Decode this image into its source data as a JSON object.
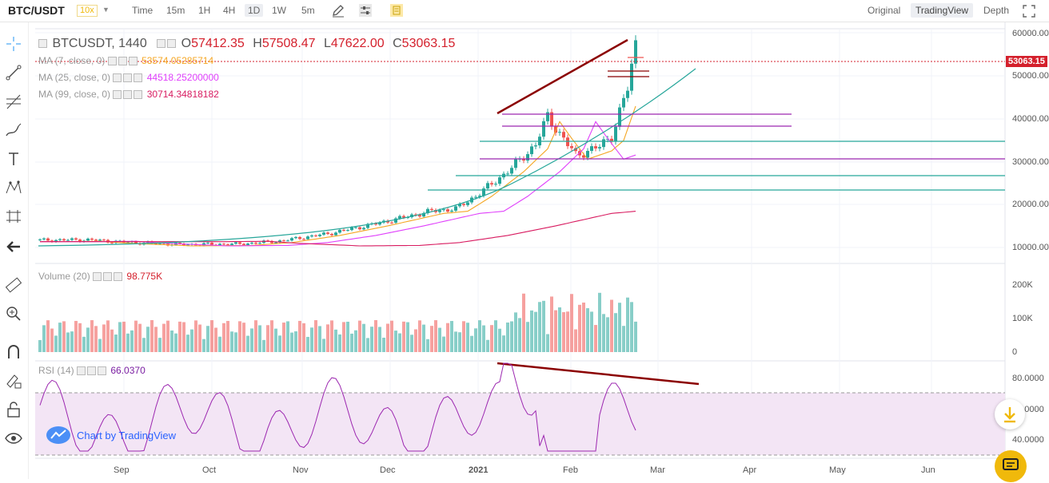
{
  "toolbar": {
    "symbol": "BTC/USDT",
    "leverage": "10x",
    "timeframes": [
      "Time",
      "15m",
      "1H",
      "4H",
      "1D",
      "1W",
      "5m"
    ],
    "selected_timeframe": "1D",
    "views": [
      "Original",
      "TradingView",
      "Depth"
    ],
    "selected_view": "TradingView"
  },
  "legend": {
    "main": {
      "symbol": "BTCUSDT, 1440",
      "o_label": "O",
      "o": "57412.35",
      "h_label": "H",
      "h": "57508.47",
      "l_label": "L",
      "l": "47622.00",
      "c_label": "C",
      "c": "53063.15"
    },
    "ma7": {
      "label": "MA (7, close, 0)",
      "value": "53574.05285714",
      "color": "#f5a623"
    },
    "ma25": {
      "label": "MA (25, close, 0)",
      "value": "44518.25200000",
      "color": "#e040fb"
    },
    "ma99": {
      "label": "MA (99, close, 0)",
      "value": "30714.34818182",
      "color": "#d81b60"
    },
    "volume": {
      "label": "Volume (20)",
      "value": "98.775K"
    },
    "rsi": {
      "label": "RSI (14)",
      "value": "66.0370"
    }
  },
  "price_axis": [
    "60000.00",
    "50000.00",
    "40000.00",
    "30000.00",
    "20000.00",
    "10000.00"
  ],
  "current_price": "53063.15",
  "volume_axis": [
    "200K",
    "100K",
    "0"
  ],
  "rsi_axis": [
    "80.0000",
    "60.0000",
    "40.0000"
  ],
  "time_axis": [
    "Sep",
    "Oct",
    "Nov",
    "Dec",
    "2021",
    "Feb",
    "Mar",
    "Apr",
    "May",
    "Jun"
  ],
  "watermark": "Chart by TradingView",
  "colors": {
    "up": "#26a69a",
    "down": "#ef5350",
    "trend": "#8b0000",
    "price_tag": "#d4202c",
    "accent": "#f0b90b",
    "rsi_band": "#f3e5f5"
  },
  "icons": [
    "crosshair-icon",
    "trendline-icon",
    "fib-icon",
    "brush-icon",
    "text-icon",
    "pattern-icon",
    "measure-icon",
    "back-arrow-icon",
    "ruler-icon",
    "zoom-icon",
    "magnet-icon",
    "lock-draw-icon",
    "lock-icon",
    "eye-icon",
    "fullscreen-icon",
    "download-icon",
    "chat-icon"
  ]
}
